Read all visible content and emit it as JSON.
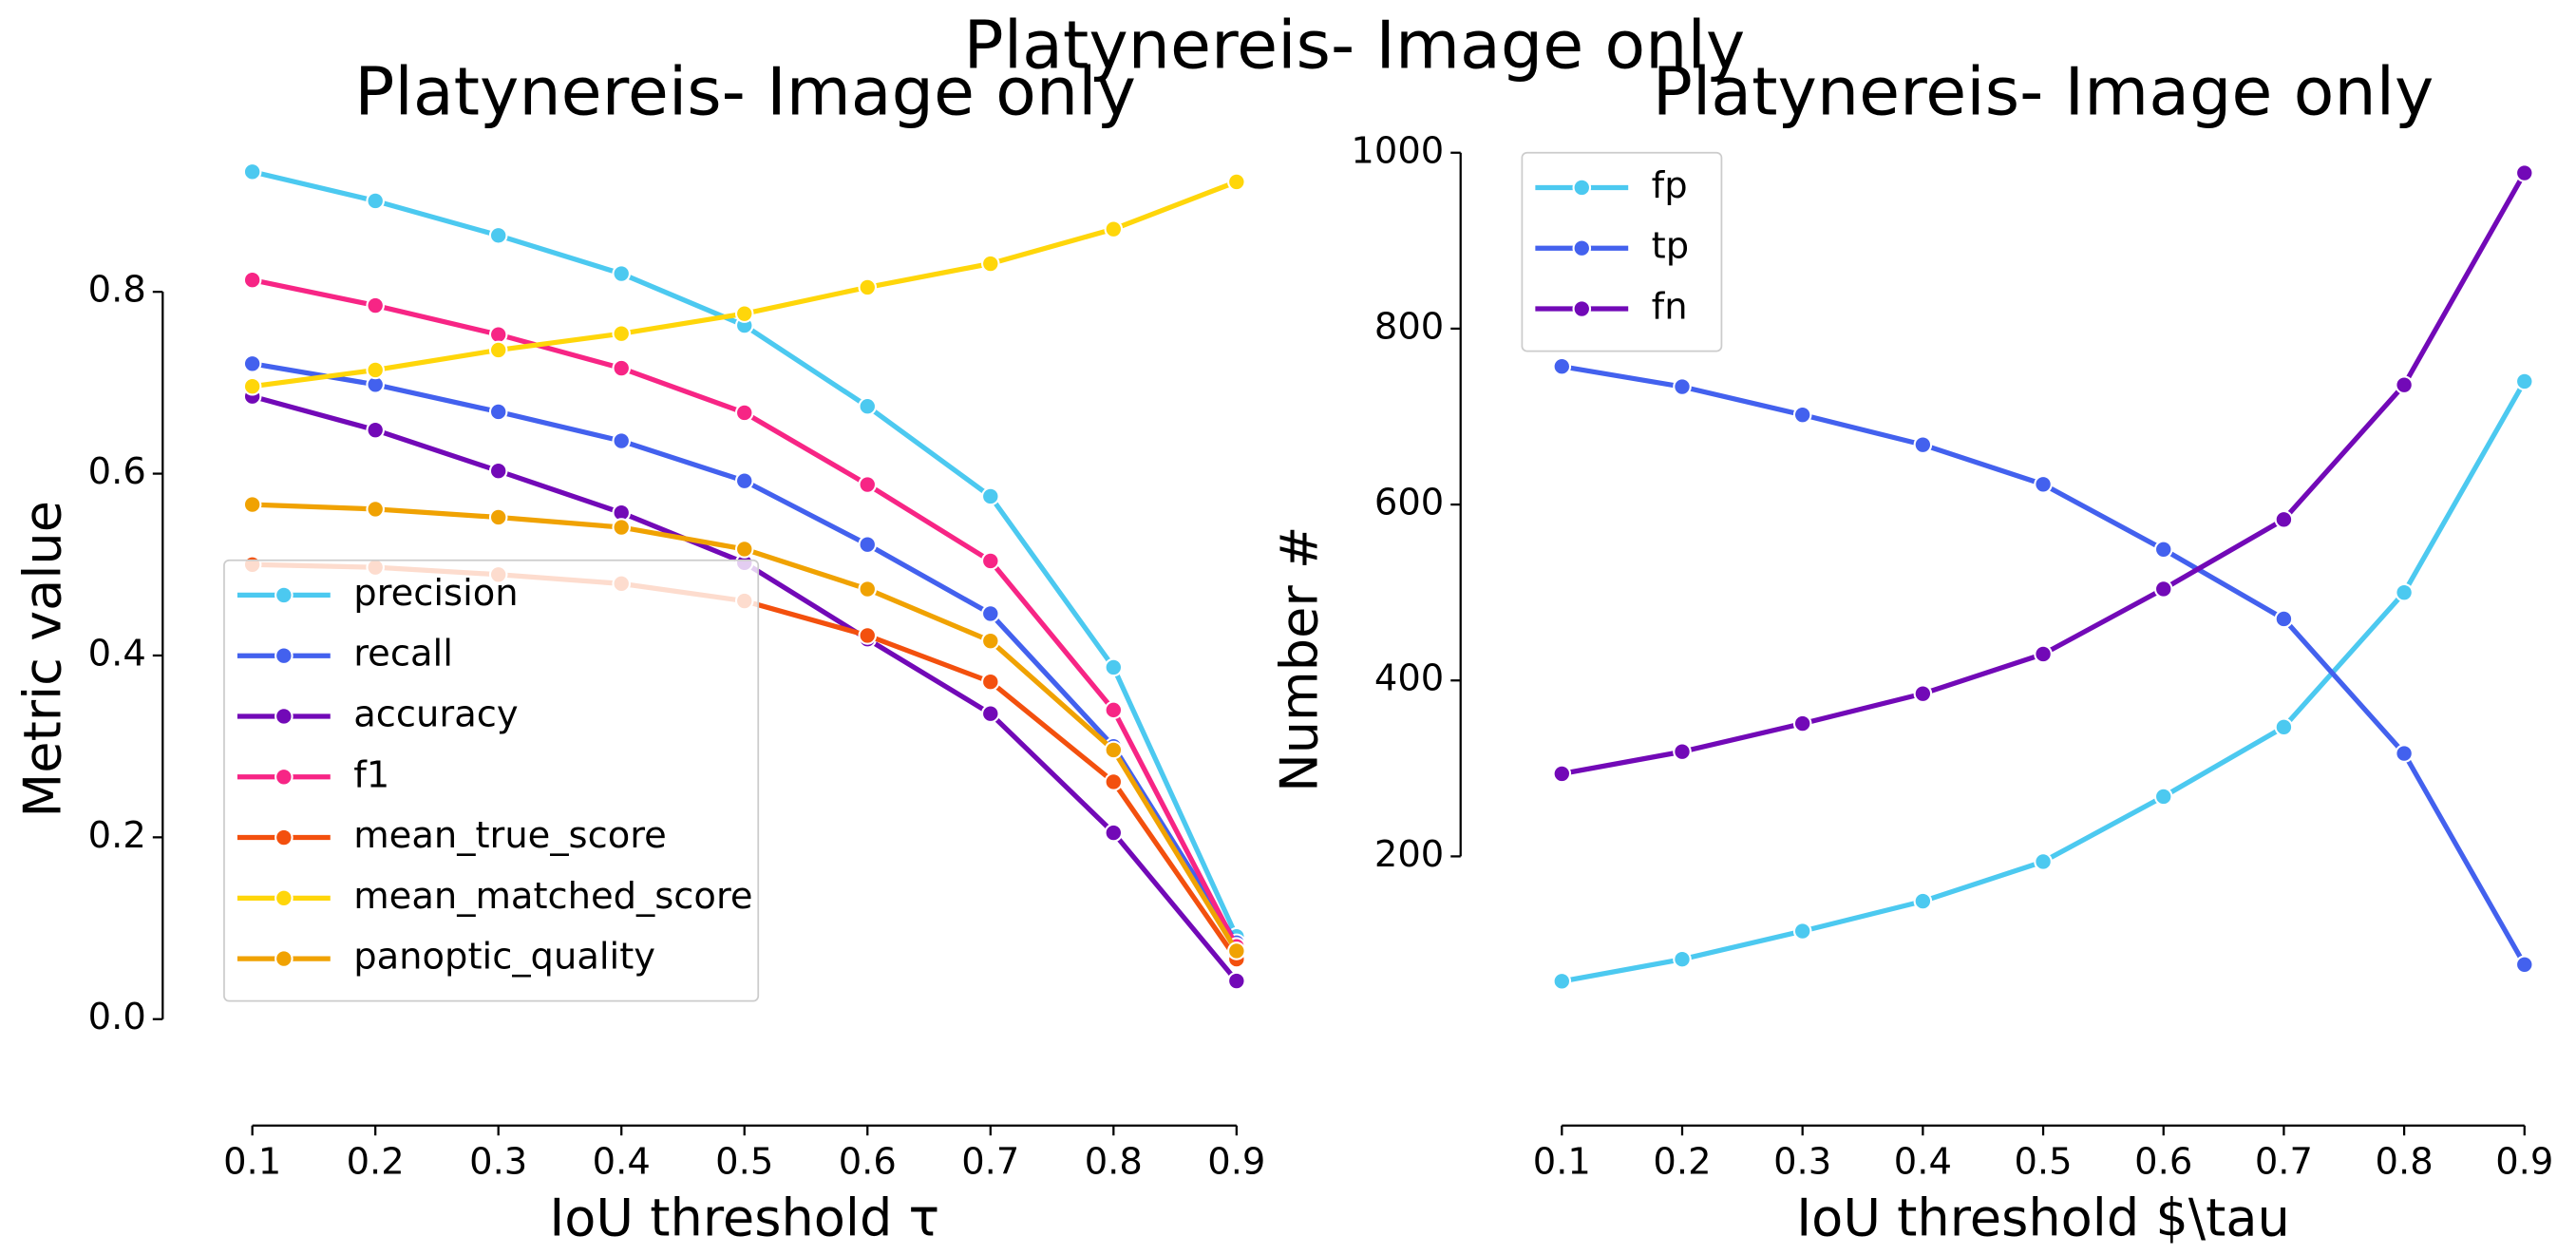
{
  "title": "Platynereis- Image only",
  "chart_data": [
    {
      "type": "line",
      "title": "Platynereis- Image only",
      "x_label": "IoU threshold τ",
      "y_label": "Metric value",
      "x": [
        0.1,
        0.2,
        0.3,
        0.4,
        0.5,
        0.6,
        0.7,
        0.8,
        0.9
      ],
      "xlim": [
        0.1,
        0.9
      ],
      "xticks": [
        0.1,
        0.2,
        0.3,
        0.4,
        0.5,
        0.6,
        0.7,
        0.8,
        0.9
      ],
      "ylim": [
        -0.117,
        0.953
      ],
      "yticks": [
        {
          "value": 0,
          "label": "0.0"
        },
        0.2,
        0.4,
        0.6,
        0.8
      ],
      "legend": "lower left",
      "series": [
        {
          "name": "precision",
          "color": "#4cc9f0",
          "values": [
            0.932,
            0.9,
            0.862,
            0.82,
            0.763,
            0.674,
            0.575,
            0.387,
            0.091
          ]
        },
        {
          "name": "recall",
          "color": "#4361ee",
          "values": [
            0.721,
            0.698,
            0.668,
            0.636,
            0.592,
            0.522,
            0.446,
            0.3,
            0.084
          ]
        },
        {
          "name": "accuracy",
          "color": "#7209b7",
          "values": [
            0.685,
            0.648,
            0.603,
            0.557,
            0.502,
            0.418,
            0.336,
            0.205,
            0.042
          ]
        },
        {
          "name": "f1",
          "color": "#f72585",
          "values": [
            0.813,
            0.785,
            0.753,
            0.716,
            0.667,
            0.588,
            0.504,
            0.34,
            0.08
          ]
        },
        {
          "name": "mean_true_score",
          "color": "#f3500e",
          "values": [
            0.5,
            0.497,
            0.489,
            0.479,
            0.46,
            0.422,
            0.371,
            0.261,
            0.066
          ]
        },
        {
          "name": "mean_matched_score",
          "color": "#ffd60a",
          "values": [
            0.696,
            0.714,
            0.736,
            0.754,
            0.776,
            0.805,
            0.831,
            0.869,
            0.921
          ]
        },
        {
          "name": "panoptic_quality",
          "color": "#f0a202",
          "values": [
            0.566,
            0.561,
            0.552,
            0.541,
            0.517,
            0.473,
            0.416,
            0.296,
            0.075
          ]
        }
      ]
    },
    {
      "type": "line",
      "title": "Platynereis- Image only",
      "x_label": "IoU threshold $\\tau",
      "y_label": "Number #",
      "x": [
        0.1,
        0.2,
        0.3,
        0.4,
        0.5,
        0.6,
        0.7,
        0.8,
        0.9
      ],
      "xlim": [
        0.1,
        0.9
      ],
      "xticks": [
        0.1,
        0.2,
        0.3,
        0.4,
        0.5,
        0.6,
        0.7,
        0.8,
        0.9
      ],
      "ylim": [
        -106,
        1000
      ],
      "yticks": [
        200,
        400,
        600,
        800,
        1000
      ],
      "legend": "upper left",
      "series": [
        {
          "name": "fp",
          "color": "#4cc9f0",
          "values": [
            58,
            83,
            115,
            149,
            194,
            268,
            347,
            500,
            740
          ]
        },
        {
          "name": "tp",
          "color": "#4361ee",
          "values": [
            757,
            734,
            702,
            668,
            623,
            549,
            470,
            317,
            77
          ]
        },
        {
          "name": "fn",
          "color": "#7209b7",
          "values": [
            294,
            319,
            351,
            385,
            430,
            504,
            583,
            736,
            977
          ]
        }
      ]
    }
  ]
}
